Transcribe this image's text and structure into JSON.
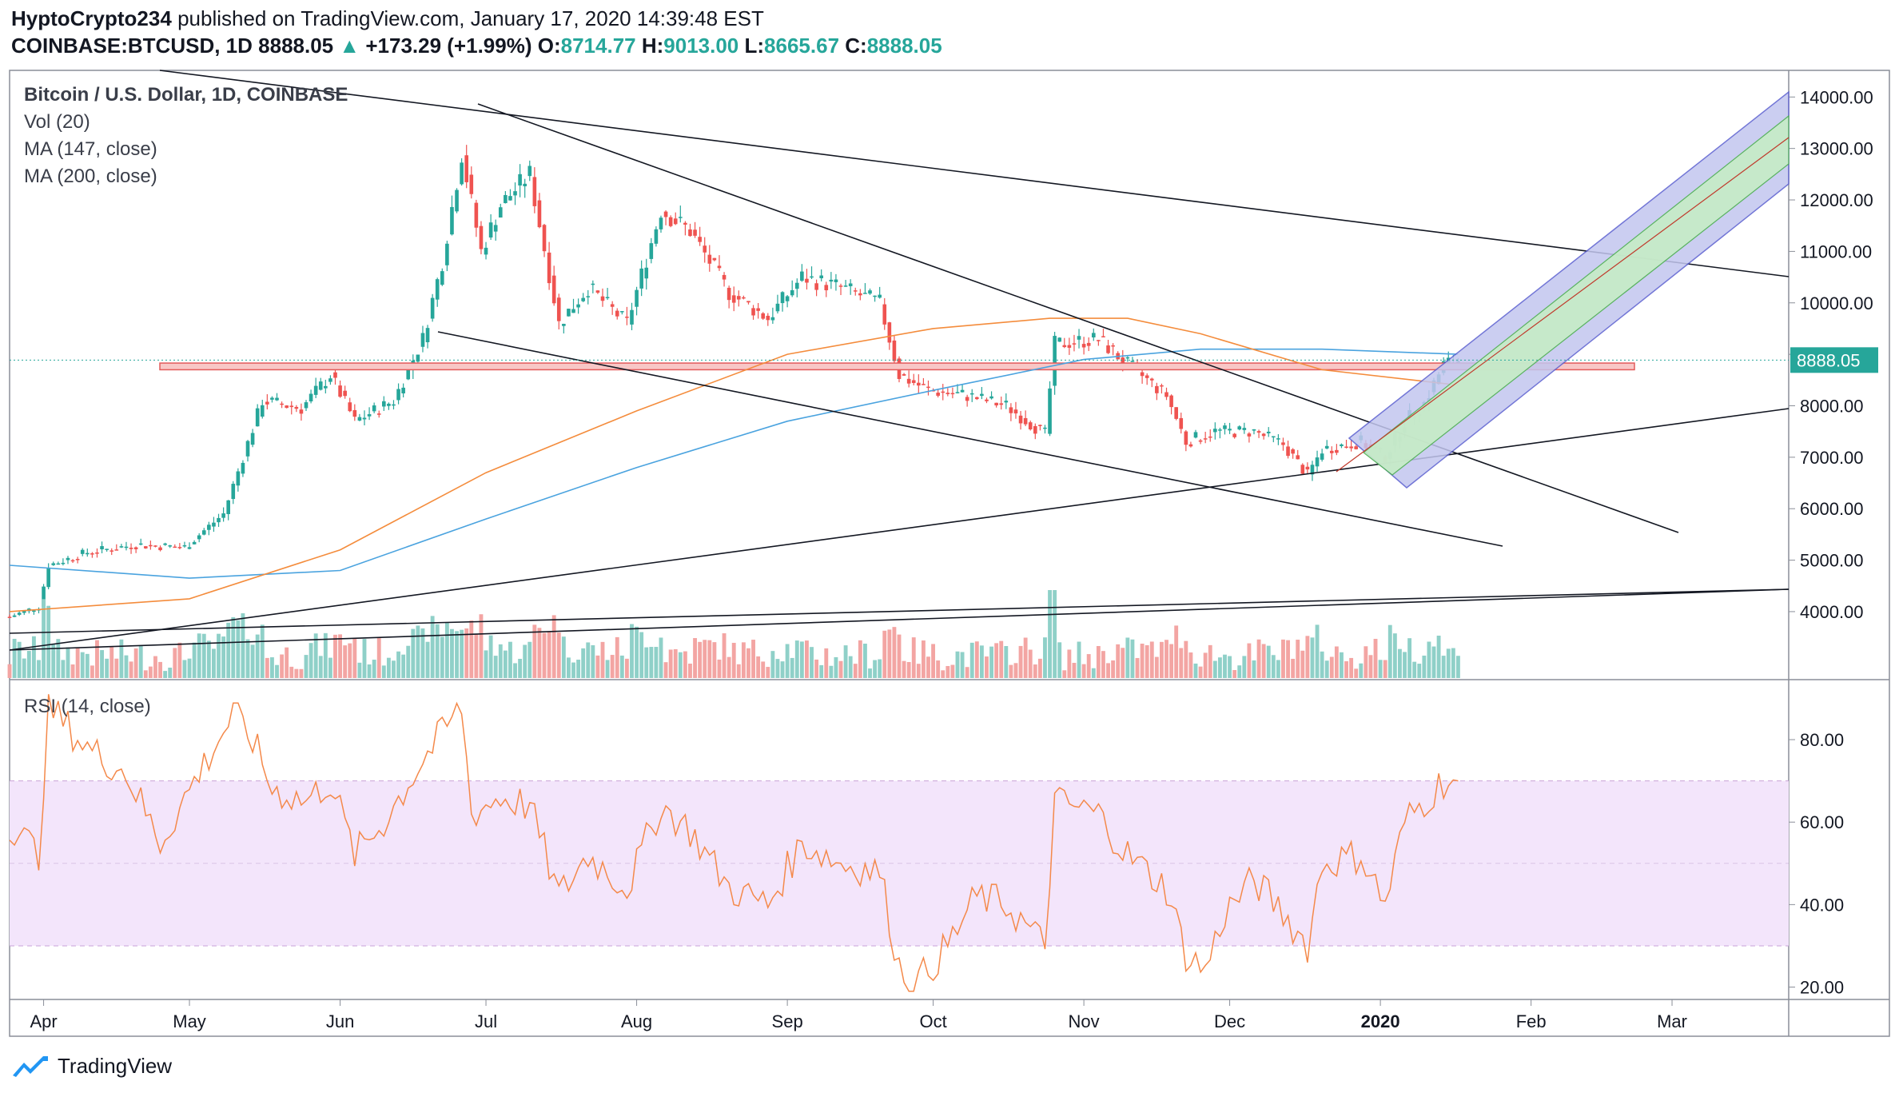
{
  "header": {
    "author": "HyptoCrypto234",
    "published": "published on TradingView.com, January 17, 2020 14:39:48 EST",
    "symbol": "COINBASE:BTCUSD, 1D",
    "last": "8888.05",
    "change": "+173.29 (+1.99%)",
    "o_label": "O:",
    "o_value": "8714.77",
    "h_label": "H:",
    "h_value": "9013.00",
    "l_label": "L:",
    "l_value": "8665.67",
    "c_label": "C:",
    "c_value": "8888.05"
  },
  "legend": {
    "title": "Bitcoin / U.S. Dollar, 1D, COINBASE",
    "vol": "Vol (20)",
    "ma147": "MA (147, close)",
    "ma200": "MA (200, close)",
    "rsi": "RSI (14, close)"
  },
  "footer": {
    "brand": "TradingView"
  },
  "colors": {
    "up": "#26a69a",
    "down": "#ef5350",
    "ma147": "#f48c3c",
    "ma200": "#4aa3df",
    "rsi": "#f4894a",
    "rsi_band": "#f3e5fb",
    "price_label_bg": "#26a69a"
  },
  "chart_data": [
    {
      "type": "candlestick",
      "title": "Bitcoin / U.S. Dollar, 1D, COINBASE",
      "x_axis_ticks": [
        "Apr",
        "May",
        "Jun",
        "Jul",
        "Aug",
        "Sep",
        "Oct",
        "Nov",
        "Dec",
        "2020",
        "Feb",
        "Mar"
      ],
      "y_axis_ticks": [
        "4000.00",
        "5000.00",
        "6000.00",
        "7000.00",
        "8000.00",
        "9000.00",
        "10000.00",
        "11000.00",
        "12000.00",
        "13000.00",
        "14000.00"
      ],
      "ylim": [
        3300,
        14300
      ],
      "last_price_label": "8888.05",
      "x_start": "2019-03-25",
      "x_end": "2020-03-25",
      "series_close": [
        [
          "2019-03-25",
          3900
        ],
        [
          "2019-03-31",
          4100
        ],
        [
          "2019-04-02",
          4900
        ],
        [
          "2019-04-10",
          5150
        ],
        [
          "2019-04-20",
          5300
        ],
        [
          "2019-04-30",
          5250
        ],
        [
          "2019-05-08",
          5900
        ],
        [
          "2019-05-12",
          7000
        ],
        [
          "2019-05-16",
          8100
        ],
        [
          "2019-05-24",
          7950
        ],
        [
          "2019-05-30",
          8600
        ],
        [
          "2019-06-04",
          7700
        ],
        [
          "2019-06-12",
          8100
        ],
        [
          "2019-06-18",
          9300
        ],
        [
          "2019-06-22",
          10800
        ],
        [
          "2019-06-26",
          12900
        ],
        [
          "2019-06-30",
          11000
        ],
        [
          "2019-07-04",
          11900
        ],
        [
          "2019-07-10",
          12500
        ],
        [
          "2019-07-16",
          9600
        ],
        [
          "2019-07-22",
          10300
        ],
        [
          "2019-07-30",
          9600
        ],
        [
          "2019-08-06",
          11800
        ],
        [
          "2019-08-12",
          11400
        ],
        [
          "2019-08-20",
          10200
        ],
        [
          "2019-08-28",
          9700
        ],
        [
          "2019-09-04",
          10500
        ],
        [
          "2019-09-12",
          10300
        ],
        [
          "2019-09-20",
          10000
        ],
        [
          "2019-09-24",
          8600
        ],
        [
          "2019-09-30",
          8300
        ],
        [
          "2019-10-08",
          8200
        ],
        [
          "2019-10-16",
          8000
        ],
        [
          "2019-10-24",
          7450
        ],
        [
          "2019-10-26",
          9200
        ],
        [
          "2019-11-04",
          9300
        ],
        [
          "2019-11-10",
          8800
        ],
        [
          "2019-11-18",
          8200
        ],
        [
          "2019-11-22",
          7300
        ],
        [
          "2019-11-28",
          7500
        ],
        [
          "2019-12-06",
          7500
        ],
        [
          "2019-12-12",
          7250
        ],
        [
          "2019-12-17",
          6650
        ],
        [
          "2019-12-20",
          7150
        ],
        [
          "2019-12-28",
          7300
        ],
        [
          "2020-01-02",
          7000
        ],
        [
          "2020-01-06",
          7700
        ],
        [
          "2020-01-10",
          8050
        ],
        [
          "2020-01-14",
          8800
        ],
        [
          "2020-01-17",
          8888.05
        ]
      ],
      "ma147": [
        [
          "2019-03-25",
          4000
        ],
        [
          "2019-05-01",
          4250
        ],
        [
          "2019-06-01",
          5200
        ],
        [
          "2019-07-01",
          6700
        ],
        [
          "2019-08-01",
          7900
        ],
        [
          "2019-09-01",
          9000
        ],
        [
          "2019-10-01",
          9500
        ],
        [
          "2019-10-25",
          9700
        ],
        [
          "2019-11-10",
          9700
        ],
        [
          "2019-11-25",
          9400
        ],
        [
          "2019-12-20",
          8700
        ],
        [
          "2020-01-17",
          8400
        ]
      ],
      "ma200": [
        [
          "2019-03-25",
          4900
        ],
        [
          "2019-05-01",
          4650
        ],
        [
          "2019-06-01",
          4800
        ],
        [
          "2019-07-01",
          5800
        ],
        [
          "2019-08-01",
          6800
        ],
        [
          "2019-09-01",
          7700
        ],
        [
          "2019-10-01",
          8300
        ],
        [
          "2019-11-01",
          8900
        ],
        [
          "2019-11-25",
          9100
        ],
        [
          "2019-12-20",
          9100
        ],
        [
          "2020-01-17",
          9000
        ]
      ]
    },
    {
      "type": "bar",
      "title": "Vol (20)",
      "note": "volume bars"
    },
    {
      "type": "line",
      "title": "RSI (14, close)",
      "y_axis_ticks": [
        "20.00",
        "40.00",
        "60.00",
        "80.00"
      ],
      "ylim": [
        17,
        93
      ],
      "band": [
        30,
        70
      ],
      "values": [
        [
          "2019-03-25",
          60
        ],
        [
          "2019-03-31",
          52
        ],
        [
          "2019-04-02",
          88
        ],
        [
          "2019-04-10",
          78
        ],
        [
          "2019-04-18",
          72
        ],
        [
          "2019-04-25",
          55
        ],
        [
          "2019-05-02",
          70
        ],
        [
          "2019-05-10",
          86
        ],
        [
          "2019-05-14",
          80
        ],
        [
          "2019-05-18",
          68
        ],
        [
          "2019-05-25",
          65
        ],
        [
          "2019-05-30",
          70
        ],
        [
          "2019-06-04",
          52
        ],
        [
          "2019-06-10",
          60
        ],
        [
          "2019-06-18",
          75
        ],
        [
          "2019-06-26",
          88
        ],
        [
          "2019-06-28",
          62
        ],
        [
          "2019-07-04",
          66
        ],
        [
          "2019-07-10",
          64
        ],
        [
          "2019-07-16",
          42
        ],
        [
          "2019-07-22",
          52
        ],
        [
          "2019-07-30",
          44
        ],
        [
          "2019-08-06",
          64
        ],
        [
          "2019-08-12",
          58
        ],
        [
          "2019-08-20",
          44
        ],
        [
          "2019-08-28",
          40
        ],
        [
          "2019-09-04",
          55
        ],
        [
          "2019-09-12",
          50
        ],
        [
          "2019-09-20",
          48
        ],
        [
          "2019-09-24",
          25
        ],
        [
          "2019-09-27",
          20
        ],
        [
          "2019-10-04",
          30
        ],
        [
          "2019-10-10",
          42
        ],
        [
          "2019-10-16",
          40
        ],
        [
          "2019-10-24",
          30
        ],
        [
          "2019-10-26",
          65
        ],
        [
          "2019-11-04",
          62
        ],
        [
          "2019-11-10",
          52
        ],
        [
          "2019-11-18",
          44
        ],
        [
          "2019-11-22",
          28
        ],
        [
          "2019-11-26",
          24
        ],
        [
          "2019-11-30",
          38
        ],
        [
          "2019-12-06",
          46
        ],
        [
          "2019-12-12",
          38
        ],
        [
          "2019-12-17",
          30
        ],
        [
          "2019-12-20",
          50
        ],
        [
          "2019-12-28",
          52
        ],
        [
          "2020-01-02",
          40
        ],
        [
          "2020-01-06",
          60
        ],
        [
          "2020-01-10",
          65
        ],
        [
          "2020-01-14",
          70
        ],
        [
          "2020-01-17",
          70
        ]
      ]
    }
  ]
}
